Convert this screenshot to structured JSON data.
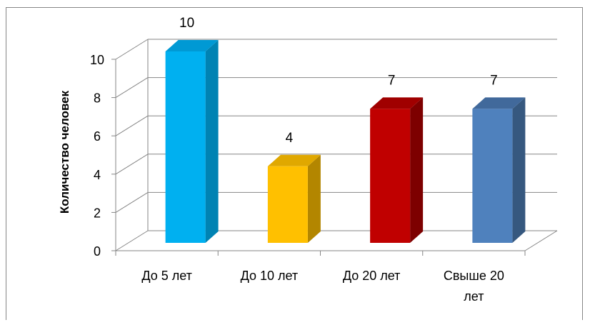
{
  "chart_data": {
    "type": "bar",
    "categories": [
      "До 5 лет",
      "До 10 лет",
      "До 20 лет",
      "Свыше 20 лет"
    ],
    "values": [
      10,
      4,
      7,
      7
    ],
    "data_labels": [
      "10",
      "4",
      "7",
      "7"
    ],
    "ylabel": "Количество человек",
    "ylim": [
      0,
      10
    ],
    "yticks": [
      "0",
      "2",
      "4",
      "6",
      "8",
      "10"
    ],
    "grid": true,
    "style": "3d-column",
    "bar_colors": [
      {
        "front": "#00b0f0",
        "side": "#0083b3",
        "top": "#0099d4"
      },
      {
        "front": "#ffc000",
        "side": "#b38600",
        "top": "#e0a800"
      },
      {
        "front": "#c00000",
        "side": "#7d0000",
        "top": "#a00000"
      },
      {
        "front": "#4f81bd",
        "side": "#36587f",
        "top": "#41699b"
      }
    ]
  },
  "colors": {
    "gridline": "#868686",
    "axis": "#868686",
    "border": "#868686",
    "text": "#000000"
  }
}
